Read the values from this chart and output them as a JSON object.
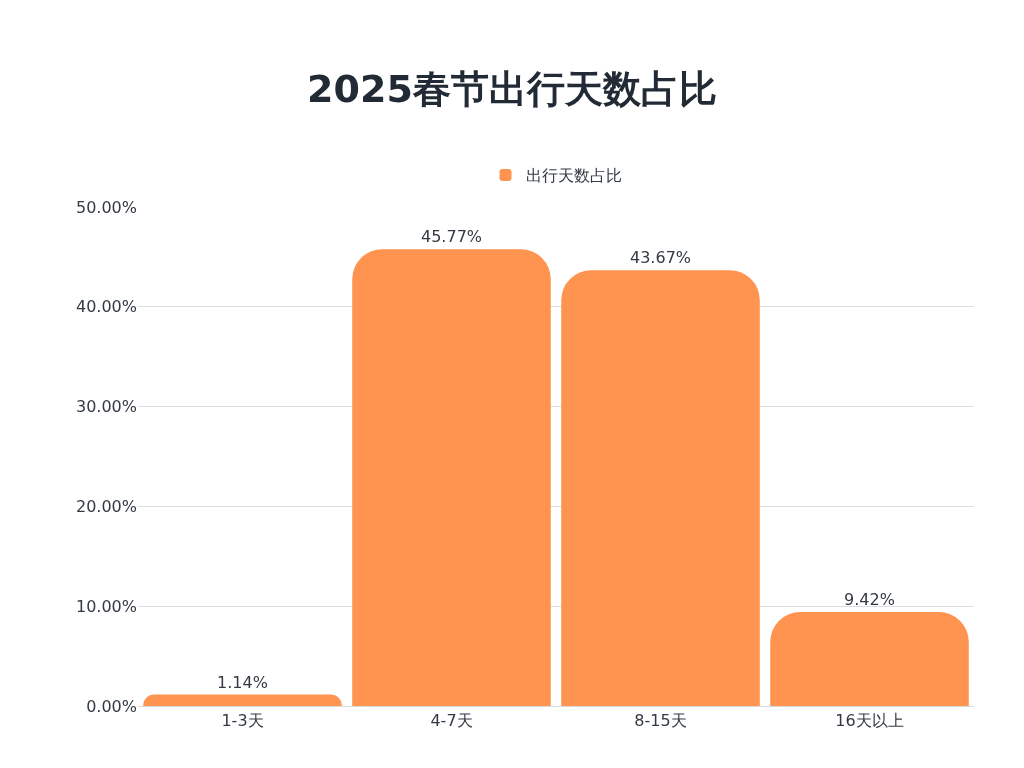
{
  "chart_data": {
    "type": "bar",
    "title": "2025春节出行天数占比",
    "categories": [
      "1-3天",
      "4-7天",
      "8-15天",
      "16天以上"
    ],
    "series": [
      {
        "name": "出行天数占比",
        "color": "#ff9350",
        "values": [
          1.14,
          45.77,
          43.67,
          9.42
        ],
        "value_labels": [
          "1.14%",
          "45.77%",
          "43.67%",
          "9.42%"
        ]
      }
    ],
    "ylim": [
      0,
      50
    ],
    "yticks": [
      {
        "value": 0,
        "label": "0.00%"
      },
      {
        "value": 10,
        "label": "10.00%"
      },
      {
        "value": 20,
        "label": "20.00%"
      },
      {
        "value": 30,
        "label": "30.00%"
      },
      {
        "value": 40,
        "label": "40.00%"
      },
      {
        "value": 50,
        "label": "50.00%"
      }
    ],
    "grid": "y",
    "legend": "top"
  }
}
